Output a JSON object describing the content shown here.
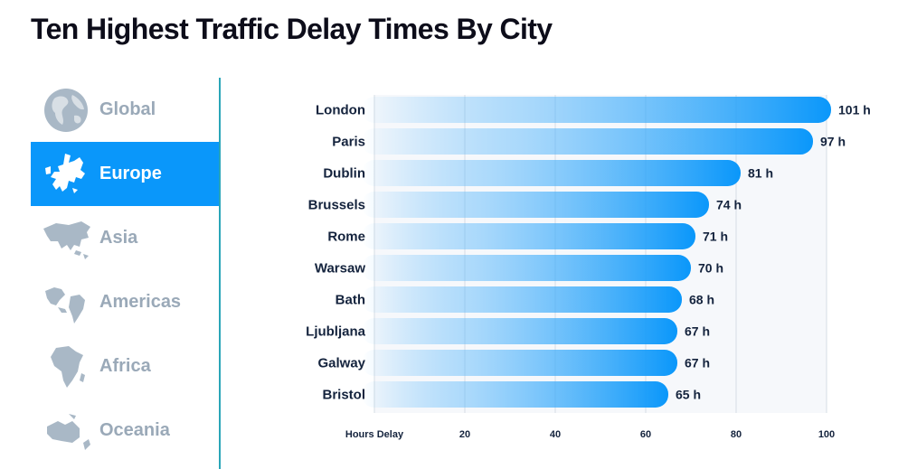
{
  "title": "Ten Highest Traffic Delay Times By City",
  "colors": {
    "accent": "#0a97fa",
    "inactive_text": "#9aa9b8",
    "inactive_icon": "#a9b8c6",
    "divider": "#2aa6b8"
  },
  "nav": {
    "items": [
      {
        "label": "Global",
        "icon": "globe-icon",
        "active": false
      },
      {
        "label": "Europe",
        "icon": "europe-map-icon",
        "active": true
      },
      {
        "label": "Asia",
        "icon": "asia-map-icon",
        "active": false
      },
      {
        "label": "Americas",
        "icon": "americas-map-icon",
        "active": false
      },
      {
        "label": "Africa",
        "icon": "africa-map-icon",
        "active": false
      },
      {
        "label": "Oceania",
        "icon": "oceania-map-icon",
        "active": false
      }
    ]
  },
  "chart_data": {
    "type": "bar",
    "orientation": "horizontal",
    "categories": [
      "London",
      "Paris",
      "Dublin",
      "Brussels",
      "Rome",
      "Warsaw",
      "Bath",
      "Ljubljana",
      "Galway",
      "Bristol"
    ],
    "values": [
      101,
      97,
      81,
      74,
      71,
      70,
      68,
      67,
      67,
      65
    ],
    "value_labels": [
      "101 h",
      "97 h",
      "81 h",
      "74 h",
      "71 h",
      "70 h",
      "68 h",
      "67 h",
      "67 h",
      "65 h"
    ],
    "xlabel": "Hours Delay",
    "xticks": [
      20,
      40,
      60,
      80,
      100
    ],
    "xlim": [
      0,
      100
    ],
    "grid": true
  }
}
